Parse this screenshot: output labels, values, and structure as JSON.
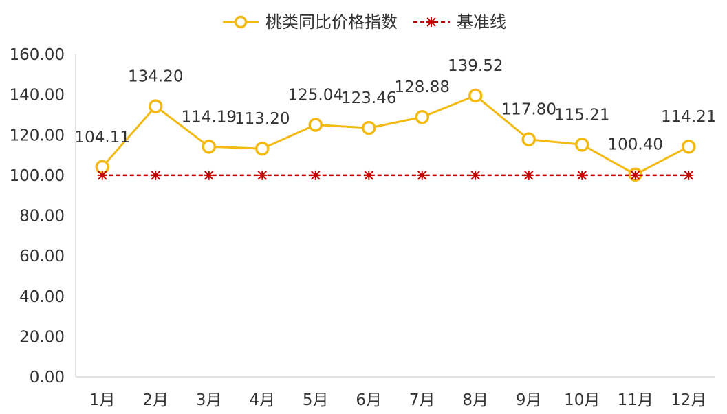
{
  "chart_data": {
    "type": "line",
    "categories": [
      "1月",
      "2月",
      "3月",
      "4月",
      "5月",
      "6月",
      "7月",
      "8月",
      "9月",
      "10月",
      "11月",
      "12月"
    ],
    "series": [
      {
        "name": "桃类同比价格指数",
        "values": [
          104.11,
          134.2,
          114.19,
          113.2,
          125.04,
          123.46,
          128.88,
          139.52,
          117.8,
          115.21,
          100.4,
          114.21
        ],
        "data_labels": [
          "104.11",
          "134.20",
          "114.19",
          "113.20",
          "125.04",
          "123.46",
          "128.88",
          "139.52",
          "117.80",
          "115.21",
          "100.40",
          "114.21"
        ],
        "color": "#F2BA13",
        "marker": "hollow-circle",
        "line_style": "solid"
      },
      {
        "name": "基准线",
        "values": [
          100,
          100,
          100,
          100,
          100,
          100,
          100,
          100,
          100,
          100,
          100,
          100
        ],
        "color": "#C00000",
        "marker": "asterisk",
        "line_style": "dashed"
      }
    ],
    "y_ticks": [
      "0.00",
      "20.00",
      "40.00",
      "60.00",
      "80.00",
      "100.00",
      "120.00",
      "140.00",
      "160.00"
    ],
    "ylim": [
      0,
      160
    ],
    "grid": false,
    "legend_position": "top-center",
    "title": "",
    "xlabel": "",
    "ylabel": ""
  }
}
